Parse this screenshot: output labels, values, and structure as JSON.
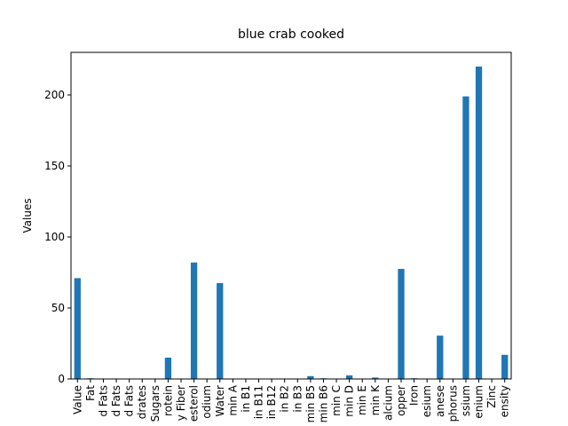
{
  "chart_data": {
    "type": "bar",
    "title": "blue crab cooked",
    "y_label": "Values",
    "categories": [
      "Value",
      "Fat",
      "d Fats",
      "d Fats",
      "d Fats",
      "drates",
      "Sugars",
      "rotein",
      "y Fiber",
      "esterol",
      "odium",
      "Water",
      "min A",
      "in B1",
      "in B11",
      "in B12",
      "in B2",
      "in B3",
      "min B5",
      "min B6",
      "min C",
      "min D",
      "min E",
      "min K",
      "alcium",
      "opper",
      "Iron",
      "esium",
      "anese",
      "phorus",
      "ssium",
      "enium",
      "Zinc",
      "ensity"
    ],
    "values": [
      71,
      0.5,
      0,
      0,
      0,
      0,
      0,
      15,
      0,
      82,
      0,
      67.5,
      0,
      0,
      0,
      0,
      0,
      0,
      2,
      0.5,
      0,
      2.5,
      0,
      1,
      0,
      77.5,
      0.5,
      0,
      30.5,
      0,
      199,
      220,
      0,
      17
    ],
    "color": "#1f77b4",
    "ylim": [
      0,
      230
    ],
    "yticks": [
      0,
      50,
      100,
      150,
      200
    ]
  }
}
